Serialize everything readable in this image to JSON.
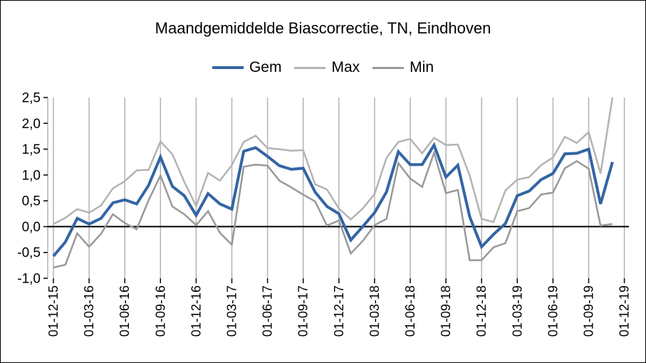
{
  "chart_data": {
    "type": "line",
    "title": "Maandgemiddelde Biascorrectie, TN, Eindhoven",
    "xlabel": "",
    "ylabel": "",
    "ylim": [
      -1.0,
      2.5
    ],
    "ytick_values": [
      -1.0,
      -0.5,
      0.0,
      0.5,
      1.0,
      1.5,
      2.0,
      2.5
    ],
    "ytick_labels": [
      "-1,0",
      "-0,5",
      "0,0",
      "0,5",
      "1,0",
      "1,5",
      "2,0",
      "2,5"
    ],
    "xtick_labels": [
      "01-12-15",
      "01-03-16",
      "01-06-16",
      "01-09-16",
      "01-12-16",
      "01-03-17",
      "01-06-17",
      "01-09-17",
      "01-12-17",
      "01-03-18",
      "01-06-18",
      "01-09-18",
      "01-12-18",
      "01-03-19",
      "01-06-19",
      "01-09-19",
      "01-12-19"
    ],
    "x": [
      "2015-12",
      "2016-01",
      "2016-02",
      "2016-03",
      "2016-04",
      "2016-05",
      "2016-06",
      "2016-07",
      "2016-08",
      "2016-09",
      "2016-10",
      "2016-11",
      "2016-12",
      "2017-01",
      "2017-02",
      "2017-03",
      "2017-04",
      "2017-05",
      "2017-06",
      "2017-07",
      "2017-08",
      "2017-09",
      "2017-10",
      "2017-11",
      "2017-12",
      "2018-01",
      "2018-02",
      "2018-03",
      "2018-04",
      "2018-05",
      "2018-06",
      "2018-07",
      "2018-08",
      "2018-09",
      "2018-10",
      "2018-11",
      "2018-12",
      "2019-01",
      "2019-02",
      "2019-03",
      "2019-04",
      "2019-05",
      "2019-06",
      "2019-07",
      "2019-08",
      "2019-09",
      "2019-10",
      "2019-11"
    ],
    "grid": "vertical",
    "legend_position": "top",
    "series": [
      {
        "name": "Gem",
        "color": "#3465a4",
        "values": [
          -0.57,
          -0.3,
          0.16,
          0.05,
          0.16,
          0.46,
          0.52,
          0.44,
          0.8,
          1.35,
          0.78,
          0.6,
          0.22,
          0.64,
          0.44,
          0.34,
          1.46,
          1.53,
          1.36,
          1.18,
          1.11,
          1.13,
          0.67,
          0.39,
          0.25,
          -0.26,
          0.0,
          0.27,
          0.67,
          1.45,
          1.2,
          1.2,
          1.58,
          0.96,
          1.19,
          0.19,
          -0.39,
          -0.15,
          0.06,
          0.6,
          0.69,
          0.91,
          1.03,
          1.41,
          1.42,
          1.5,
          0.44,
          1.25
        ]
      },
      {
        "name": "Max",
        "color": "#b3b3b3",
        "values": [
          0.05,
          0.17,
          0.34,
          0.27,
          0.41,
          0.74,
          0.88,
          1.09,
          1.1,
          1.65,
          1.4,
          0.87,
          0.4,
          1.04,
          0.89,
          1.19,
          1.64,
          1.76,
          1.52,
          1.5,
          1.47,
          1.48,
          0.82,
          0.72,
          0.35,
          0.14,
          0.35,
          0.63,
          1.33,
          1.64,
          1.7,
          1.42,
          1.72,
          1.58,
          1.59,
          0.99,
          0.15,
          0.09,
          0.7,
          0.91,
          0.96,
          1.19,
          1.34,
          1.74,
          1.62,
          1.83,
          1.03,
          2.5
        ]
      },
      {
        "name": "Min",
        "color": "#999999",
        "values": [
          -0.79,
          -0.74,
          -0.13,
          -0.39,
          -0.14,
          0.24,
          0.07,
          -0.05,
          0.51,
          0.99,
          0.39,
          0.24,
          0.03,
          0.3,
          -0.12,
          -0.35,
          1.16,
          1.2,
          1.18,
          0.89,
          0.76,
          0.62,
          0.49,
          0.02,
          0.12,
          -0.52,
          -0.28,
          0.03,
          0.15,
          1.23,
          0.93,
          0.77,
          1.43,
          0.65,
          0.71,
          -0.65,
          -0.65,
          -0.4,
          -0.32,
          0.3,
          0.36,
          0.62,
          0.66,
          1.13,
          1.27,
          1.12,
          0.02,
          0.05
        ]
      }
    ]
  }
}
